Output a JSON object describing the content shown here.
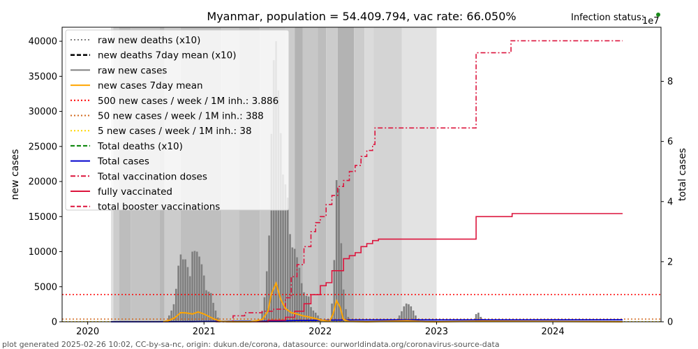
{
  "chart_data": {
    "type": "bar",
    "title": "Myanmar, population = 54.409.794, vac rate: 66.050%",
    "infection_status_label": "Infection status:",
    "infection_status_color": "#1a8a1a",
    "xlabel": "",
    "ylabel": "new cases",
    "ylabel_right": "total cases",
    "right_axis_exponent": "1e7",
    "xlim": [
      2019.78,
      2024.93
    ],
    "ylim": [
      0,
      42000
    ],
    "ylim_right": [
      0,
      9.8
    ],
    "x_ticks": [
      "2020",
      "2021",
      "2022",
      "2023",
      "2024"
    ],
    "y_ticks": [
      0,
      5000,
      10000,
      15000,
      20000,
      25000,
      30000,
      35000,
      40000
    ],
    "y_ticks_right": [
      0,
      2,
      4,
      6,
      8
    ],
    "footer": "plot generated 2025-02-26 10:02, CC-by-sa-nc, origin: dukun.de/corona, datasource: ourworldindata.org/coronavirus-source-data",
    "legend": [
      {
        "label": "raw new deaths (x10)",
        "color": "#808080",
        "dash": "dotted"
      },
      {
        "label": "new deaths 7day mean (x10)",
        "color": "#000000",
        "dash": "dashed"
      },
      {
        "label": "raw new cases",
        "color": "#808080",
        "dash": "solid"
      },
      {
        "label": "new cases 7day mean",
        "color": "#ffa500",
        "dash": "solid"
      },
      {
        "label": "500 new cases / week / 1M inh.: 3.886",
        "color": "#ff0000",
        "dash": "dotted"
      },
      {
        "label": "50 new cases / week / 1M inh.: 388",
        "color": "#d2691e",
        "dash": "dotted"
      },
      {
        "label": "5 new cases / week / 1M inh.: 38",
        "color": "#ffd700",
        "dash": "dotted"
      },
      {
        "label": "Total deaths (x10)",
        "color": "#008000",
        "dash": "dashed"
      },
      {
        "label": "Total cases",
        "color": "#0000cd",
        "dash": "solid"
      },
      {
        "label": "Total vaccination doses",
        "color": "#dc143c",
        "dash": "dashdot"
      },
      {
        "label": "fully vaccinated",
        "color": "#dc143c",
        "dash": "solid"
      },
      {
        "label": "total booster vaccinations",
        "color": "#dc143c",
        "dash": "dashed"
      }
    ],
    "thresholds": [
      {
        "name": "500 per week per 1M",
        "value": 3886,
        "color": "#ff0000"
      },
      {
        "name": "50 per week per 1M",
        "value": 388,
        "color": "#d2691e"
      },
      {
        "name": "5 per week per 1M",
        "value": 38,
        "color": "#ffd700"
      }
    ],
    "shading_bands": [
      {
        "start": 2020.2,
        "end": 2020.22,
        "gray": 0.88
      },
      {
        "start": 2020.22,
        "end": 2020.27,
        "gray": 0.8
      },
      {
        "start": 2020.27,
        "end": 2020.37,
        "gray": 0.74
      },
      {
        "start": 2020.37,
        "end": 2020.62,
        "gray": 0.77
      },
      {
        "start": 2020.62,
        "end": 2020.66,
        "gray": 0.72
      },
      {
        "start": 2020.66,
        "end": 2020.8,
        "gray": 0.8
      },
      {
        "start": 2020.8,
        "end": 2021.15,
        "gray": 0.75
      },
      {
        "start": 2021.15,
        "end": 2021.3,
        "gray": 0.79
      },
      {
        "start": 2021.3,
        "end": 2021.48,
        "gray": 0.75
      },
      {
        "start": 2021.48,
        "end": 2021.7,
        "gray": 0.78
      },
      {
        "start": 2021.7,
        "end": 2021.78,
        "gray": 0.8
      },
      {
        "start": 2021.78,
        "end": 2021.85,
        "gray": 0.7
      },
      {
        "start": 2021.85,
        "end": 2021.98,
        "gray": 0.78
      },
      {
        "start": 2021.98,
        "end": 2022.05,
        "gray": 0.74
      },
      {
        "start": 2022.05,
        "end": 2022.15,
        "gray": 0.8
      },
      {
        "start": 2022.15,
        "end": 2022.29,
        "gray": 0.7
      },
      {
        "start": 2022.29,
        "end": 2022.38,
        "gray": 0.8
      },
      {
        "start": 2022.38,
        "end": 2022.46,
        "gray": 0.86
      },
      {
        "start": 2022.46,
        "end": 2022.7,
        "gray": 0.83
      },
      {
        "start": 2022.7,
        "end": 2023.0,
        "gray": 0.89
      }
    ],
    "raw_new_cases": {
      "dates": [
        2020.7,
        2020.72,
        2020.74,
        2020.76,
        2020.78,
        2020.8,
        2020.82,
        2020.84,
        2020.86,
        2020.88,
        2020.9,
        2020.92,
        2020.94,
        2020.96,
        2020.98,
        2021.0,
        2021.02,
        2021.04,
        2021.06,
        2021.08,
        2021.1,
        2021.12,
        2021.5,
        2021.52,
        2021.54,
        2021.56,
        2021.58,
        2021.6,
        2021.62,
        2021.64,
        2021.66,
        2021.68,
        2021.7,
        2021.72,
        2021.74,
        2021.76,
        2021.78,
        2021.8,
        2021.82,
        2021.84,
        2021.86,
        2021.88,
        2021.9,
        2021.92,
        2021.94,
        2021.96,
        2021.98,
        2022.0,
        2022.1,
        2022.12,
        2022.14,
        2022.16,
        2022.18,
        2022.2,
        2022.22,
        2022.24,
        2022.68,
        2022.7,
        2022.72,
        2022.74,
        2022.76,
        2022.78,
        2022.8,
        2022.82,
        2022.84,
        2023.34,
        2023.36,
        2023.38,
        2023.4,
        2023.42
      ],
      "values": [
        900,
        1600,
        2500,
        4700,
        8000,
        9600,
        8900,
        8900,
        7800,
        6500,
        10000,
        10100,
        10000,
        9300,
        8200,
        6600,
        4500,
        4300,
        4100,
        2700,
        1600,
        600,
        1500,
        3500,
        7200,
        12300,
        26800,
        37300,
        40000,
        33000,
        26900,
        21000,
        19600,
        17700,
        12500,
        10600,
        10400,
        9200,
        7700,
        5500,
        4200,
        3700,
        3600,
        2100,
        1600,
        1300,
        900,
        500,
        2600,
        8800,
        20200,
        19000,
        11200,
        4600,
        1800,
        700,
        900,
        1500,
        2200,
        2600,
        2500,
        2200,
        1600,
        900,
        400,
        1100,
        1300,
        700,
        400,
        200
      ]
    },
    "new_cases_7day_mean": {
      "dates": [
        2020.65,
        2020.7,
        2020.75,
        2020.8,
        2020.85,
        2020.9,
        2020.95,
        2021.0,
        2021.05,
        2021.1,
        2021.15,
        2021.25,
        2021.4,
        2021.5,
        2021.55,
        2021.58,
        2021.62,
        2021.66,
        2021.7,
        2021.75,
        2021.8,
        2021.85,
        2021.9,
        2021.95,
        2022.0,
        2022.08,
        2022.11,
        2022.14,
        2022.17,
        2022.2,
        2022.25,
        2022.4,
        2022.75,
        2022.9,
        2023.0,
        2023.4,
        2024.6
      ],
      "values": [
        0,
        200,
        600,
        1300,
        1250,
        1100,
        1400,
        1100,
        700,
        300,
        50,
        0,
        0,
        300,
        1500,
        4000,
        5500,
        3200,
        1900,
        1300,
        1100,
        850,
        700,
        500,
        250,
        100,
        1100,
        3000,
        2100,
        300,
        50,
        0,
        150,
        20,
        0,
        100,
        0
      ]
    },
    "total_cases": {
      "dates": [
        2020.2,
        2020.6,
        2020.9,
        2021.1,
        2021.3,
        2021.5,
        2021.6,
        2021.8,
        2022.0,
        2022.1,
        2022.3,
        2022.6,
        2023.0,
        2024.6
      ],
      "values": [
        0,
        0.0005,
        0.005,
        0.013,
        0.014,
        0.015,
        0.025,
        0.045,
        0.052,
        0.055,
        0.061,
        0.062,
        0.063,
        0.064
      ]
    },
    "total_vaccination_doses": {
      "dates": [
        2021.1,
        2021.25,
        2021.35,
        2021.5,
        2021.6,
        2021.7,
        2021.75,
        2021.8,
        2021.86,
        2021.92,
        2021.96,
        2022.0,
        2022.05,
        2022.1,
        2022.15,
        2022.2,
        2022.25,
        2022.3,
        2022.35,
        2022.4,
        2022.45,
        2022.47,
        2022.55,
        2022.7,
        2023.0,
        2023.33,
        2023.34,
        2023.6,
        2023.64,
        2024.0,
        2024.6
      ],
      "values": [
        0,
        0.2,
        0.3,
        0.35,
        0.42,
        0.8,
        1.5,
        1.9,
        2.5,
        3.0,
        3.3,
        3.5,
        3.9,
        4.2,
        4.5,
        4.7,
        5.0,
        5.2,
        5.5,
        5.7,
        5.9,
        6.45,
        6.45,
        6.45,
        6.45,
        6.45,
        8.95,
        8.95,
        9.35,
        9.35,
        9.35
      ]
    },
    "fully_vaccinated": {
      "dates": [
        2021.4,
        2021.55,
        2021.7,
        2021.78,
        2021.86,
        2021.92,
        2022.0,
        2022.05,
        2022.1,
        2022.2,
        2022.25,
        2022.3,
        2022.35,
        2022.4,
        2022.45,
        2022.5,
        2023.0,
        2023.33,
        2023.34,
        2023.64,
        2023.65,
        2024.6
      ],
      "values": [
        0,
        0.05,
        0.15,
        0.35,
        0.6,
        0.9,
        1.2,
        1.3,
        1.7,
        2.1,
        2.2,
        2.3,
        2.5,
        2.6,
        2.7,
        2.75,
        2.75,
        2.75,
        3.5,
        3.5,
        3.6,
        3.6
      ]
    }
  }
}
